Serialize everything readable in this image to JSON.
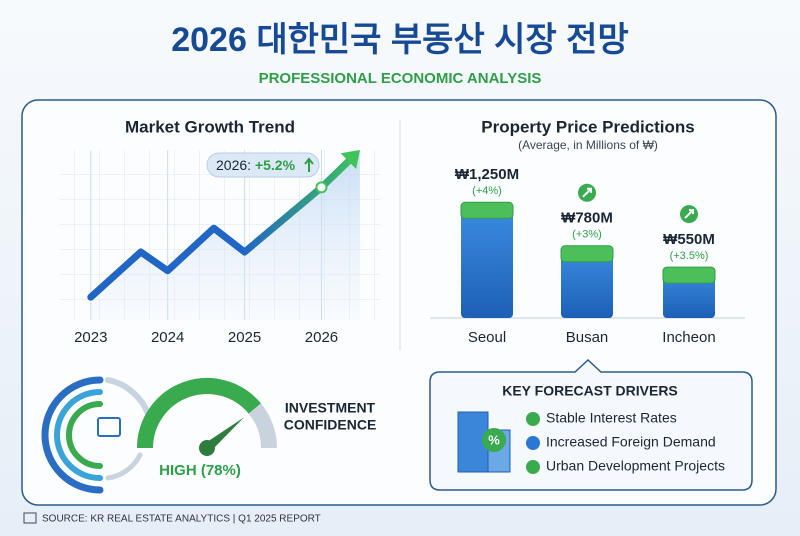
{
  "title": "2026 대한민국 부동산 시장 전망",
  "subtitle": "PROFESSIONAL ECONOMIC ANALYSIS",
  "chart_data": [
    {
      "type": "line",
      "title": "Market Growth Trend",
      "x": [
        2023,
        2023.65,
        2024,
        2024.6,
        2025,
        2026,
        2026.5
      ],
      "values": [
        13.5,
        40,
        29,
        54,
        40,
        78,
        100
      ],
      "xlim": [
        2022.6,
        2026.8
      ],
      "xticks": [
        2023,
        2024,
        2025,
        2026
      ],
      "ylim": [
        0,
        100
      ],
      "grid": true,
      "color": "#2166c4",
      "end_color": "#3fc35a",
      "annotation": {
        "label": "2026:",
        "value_label": "+5.2%"
      }
    },
    {
      "type": "bar",
      "title": "Property Price Predictions",
      "subtitle": "(Average, in Millions of ₩)",
      "categories": [
        "Seoul",
        "Busan",
        "Incheon"
      ],
      "values": [
        1250,
        780,
        550
      ],
      "value_labels": [
        "₩1,250M",
        "₩780M",
        "₩550M"
      ],
      "changes": [
        4,
        3,
        3.5
      ],
      "change_labels": [
        "(+4%)",
        "(+3%)",
        "(+3.5%)"
      ],
      "ylim": [
        0,
        1350
      ],
      "color": "#2a78d2",
      "cap_color": "#4cbf5a"
    },
    {
      "type": "gauge",
      "title_lines": [
        "INVESTMENT",
        "CONFIDENCE"
      ],
      "value": 78,
      "value_label": "HIGH (78%)",
      "lim": [
        0,
        100
      ],
      "color": "#3aaa4e"
    }
  ],
  "drivers": {
    "title": "KEY FORECAST DRIVERS",
    "items": [
      "Stable Interest Rates",
      "Increased Foreign Demand",
      "Urban Development Projects"
    ]
  },
  "source": "SOURCE: KR REAL ESTATE ANALYTICS | Q1 2025 REPORT"
}
